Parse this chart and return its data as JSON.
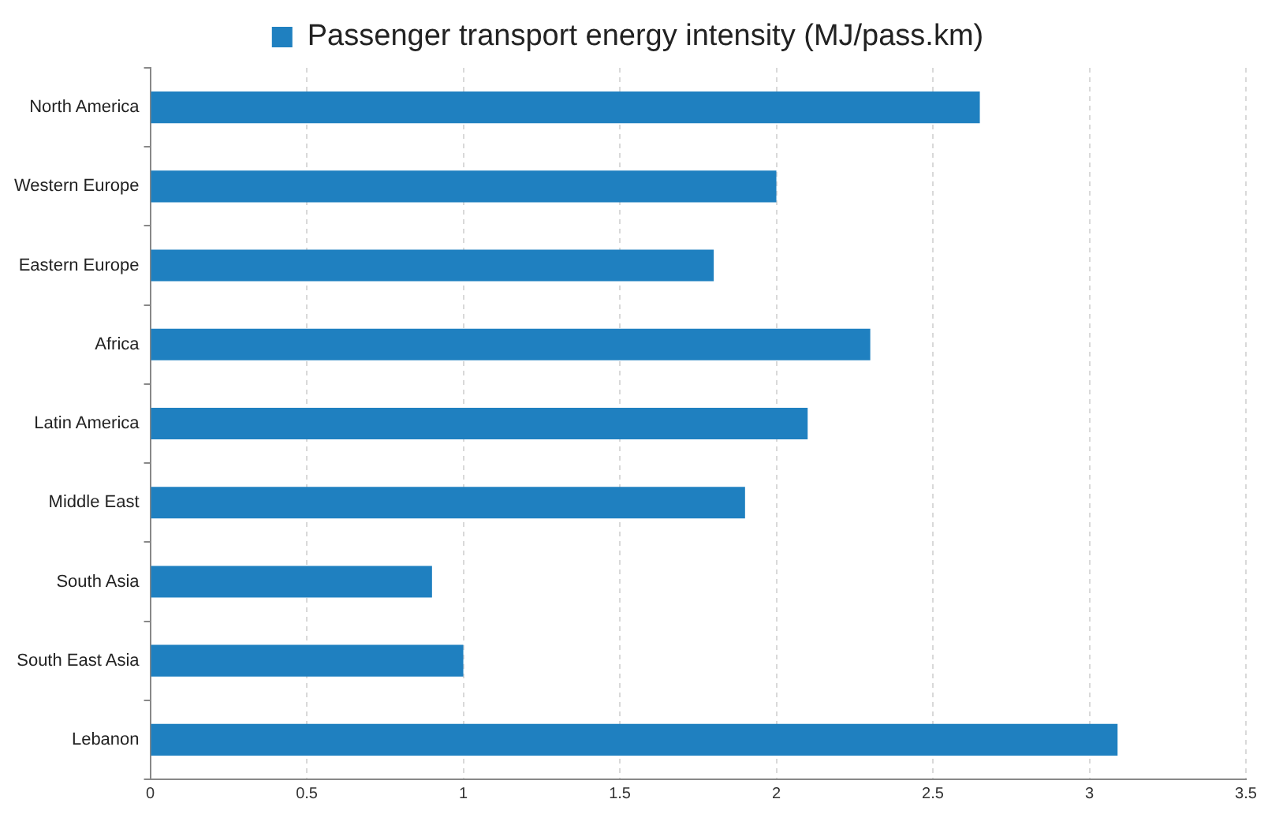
{
  "chart_data": {
    "type": "bar",
    "orientation": "horizontal",
    "categories": [
      "North America",
      "Western Europe",
      "Eastern Europe",
      "Africa",
      "Latin America",
      "Middle East",
      "South Asia",
      "South East Asia",
      "Lebanon"
    ],
    "series": [
      {
        "name": "Passenger transport energy intensity (MJ/pass.km)",
        "color": "#1f80c0",
        "values": [
          2.65,
          2.0,
          1.8,
          2.3,
          2.1,
          1.9,
          0.9,
          1.0,
          3.09
        ]
      }
    ],
    "xlim": [
      0,
      3.5
    ],
    "xticks": [
      0,
      0.5,
      1,
      1.5,
      2,
      2.5,
      3,
      3.5
    ],
    "grid": "x",
    "legend": "top"
  }
}
